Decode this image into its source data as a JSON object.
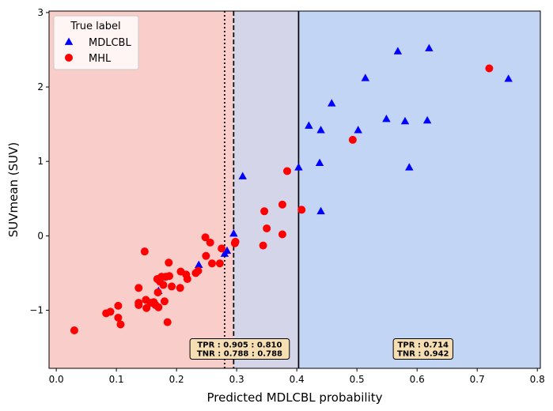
{
  "chart_data": {
    "type": "scatter",
    "xlabel": "Predicted MDLCBL probability",
    "ylabel": "SUVmean (SUV)",
    "xlim": [
      -0.012,
      0.805
    ],
    "ylim": [
      -1.78,
      3.02
    ],
    "xticks": [
      0.0,
      0.1,
      0.2,
      0.3,
      0.4,
      0.5,
      0.6,
      0.7,
      0.8
    ],
    "xtick_labels": [
      "0.0",
      "0.1",
      "0.2",
      "0.3",
      "0.4",
      "0.5",
      "0.6",
      "0.7",
      "0.8"
    ],
    "yticks": [
      -1,
      0,
      1,
      2,
      3
    ],
    "ytick_labels": [
      "−1",
      "0",
      "1",
      "2",
      "3"
    ],
    "grid": false,
    "legend": {
      "title": "True label",
      "placement": "top-left"
    },
    "regions": [
      {
        "from": -0.012,
        "to": 0.295,
        "color": "#f9cdc9"
      },
      {
        "from": 0.295,
        "to": 0.403,
        "color": "#d5d5ea"
      },
      {
        "from": 0.403,
        "to": 0.805,
        "color": "#c3d5f5"
      }
    ],
    "threshold_lines": [
      {
        "x": 0.28,
        "style": "dotted"
      },
      {
        "x": 0.295,
        "style": "dashed"
      },
      {
        "x": 0.403,
        "style": "solid"
      }
    ],
    "annotations": [
      {
        "x": 0.305,
        "y": -1.52,
        "lines": [
          "TPR : 0.905 : 0.810",
          "TNR : 0.788 : 0.788"
        ]
      },
      {
        "x": 0.61,
        "y": -1.52,
        "lines": [
          "TPR : 0.714",
          "TNR : 0.942"
        ]
      }
    ],
    "series": [
      {
        "name": "MDLCBL",
        "marker": "triangle",
        "color": "#0000ff",
        "points": [
          [
            0.237,
            -0.39
          ],
          [
            0.28,
            -0.24
          ],
          [
            0.284,
            -0.2
          ],
          [
            0.295,
            0.03
          ],
          [
            0.31,
            0.8
          ],
          [
            0.403,
            0.92
          ],
          [
            0.42,
            1.48
          ],
          [
            0.44,
            1.42
          ],
          [
            0.438,
            0.98
          ],
          [
            0.44,
            0.33
          ],
          [
            0.458,
            1.78
          ],
          [
            0.502,
            1.42
          ],
          [
            0.514,
            2.12
          ],
          [
            0.549,
            1.57
          ],
          [
            0.568,
            2.48
          ],
          [
            0.58,
            1.54
          ],
          [
            0.587,
            0.92
          ],
          [
            0.617,
            1.55
          ],
          [
            0.62,
            2.52
          ],
          [
            0.752,
            2.11
          ],
          [
            0.175,
            -0.62
          ],
          [
            0.17,
            -0.74
          ]
        ]
      },
      {
        "name": "MHL",
        "marker": "circle",
        "color": "#ff0000",
        "points": [
          [
            0.03,
            -1.27
          ],
          [
            0.083,
            -1.04
          ],
          [
            0.09,
            -1.02
          ],
          [
            0.103,
            -0.94
          ],
          [
            0.103,
            -1.1
          ],
          [
            0.107,
            -1.19
          ],
          [
            0.137,
            -0.7
          ],
          [
            0.137,
            -0.9
          ],
          [
            0.137,
            -0.93
          ],
          [
            0.147,
            -0.21
          ],
          [
            0.149,
            -0.86
          ],
          [
            0.15,
            -0.97
          ],
          [
            0.157,
            -0.9
          ],
          [
            0.162,
            -0.89
          ],
          [
            0.165,
            -0.93
          ],
          [
            0.168,
            -0.58
          ],
          [
            0.169,
            -0.76
          ],
          [
            0.17,
            -0.96
          ],
          [
            0.172,
            -0.61
          ],
          [
            0.175,
            -0.55
          ],
          [
            0.178,
            -0.66
          ],
          [
            0.18,
            -0.88
          ],
          [
            0.182,
            -0.55
          ],
          [
            0.185,
            -1.16
          ],
          [
            0.187,
            -0.36
          ],
          [
            0.188,
            -0.54
          ],
          [
            0.192,
            -0.68
          ],
          [
            0.206,
            -0.7
          ],
          [
            0.207,
            -0.48
          ],
          [
            0.216,
            -0.52
          ],
          [
            0.218,
            -0.58
          ],
          [
            0.232,
            -0.5
          ],
          [
            0.236,
            -0.47
          ],
          [
            0.248,
            -0.02
          ],
          [
            0.249,
            -0.27
          ],
          [
            0.256,
            -0.09
          ],
          [
            0.259,
            -0.37
          ],
          [
            0.272,
            -0.37
          ],
          [
            0.275,
            -0.17
          ],
          [
            0.297,
            -0.1
          ],
          [
            0.298,
            -0.08
          ],
          [
            0.344,
            -0.13
          ],
          [
            0.346,
            0.33
          ],
          [
            0.35,
            0.1
          ],
          [
            0.376,
            0.42
          ],
          [
            0.376,
            0.02
          ],
          [
            0.384,
            0.87
          ],
          [
            0.408,
            0.35
          ],
          [
            0.493,
            1.29
          ],
          [
            0.72,
            2.25
          ]
        ]
      }
    ]
  }
}
